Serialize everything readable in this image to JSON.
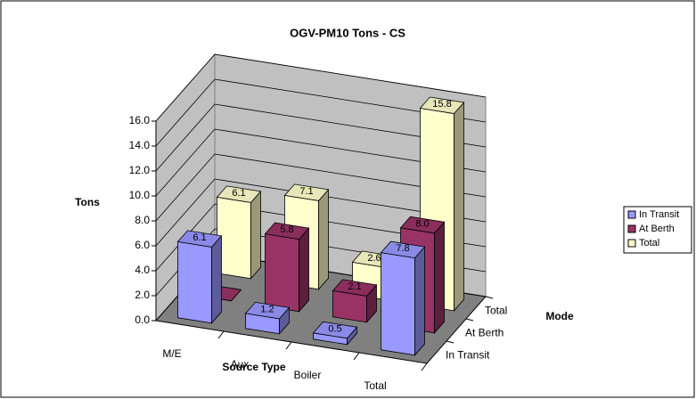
{
  "chart_data": {
    "type": "bar3d",
    "title": "OGV-PM10 Tons - CS",
    "x_label": "Source Type",
    "y_label": "Tons",
    "z_label": "Mode",
    "categories": [
      "M/E",
      "Aux",
      "Boiler",
      "Total"
    ],
    "series": [
      {
        "name": "In Transit",
        "color": "#9999ff",
        "values": [
          6.1,
          1.2,
          0.5,
          7.8
        ],
        "value_labels": [
          "6.1",
          "1.2",
          "0.5",
          "7.8"
        ]
      },
      {
        "name": "At Berth",
        "color": "#993366",
        "values": [
          0,
          5.8,
          2.1,
          8.0
        ],
        "value_labels": [
          "0",
          "5.8",
          "2.1",
          "8.0"
        ]
      },
      {
        "name": "Total",
        "color": "#ffffcc",
        "values": [
          6.1,
          7.1,
          2.6,
          15.8
        ],
        "value_labels": [
          "6.1",
          "7.1",
          "2.6",
          "15.8"
        ]
      }
    ],
    "ylim": [
      0,
      16
    ],
    "yticks": [
      {
        "value": 0,
        "label": "0.0"
      },
      {
        "value": 2,
        "label": "2.0"
      },
      {
        "value": 4,
        "label": "4.0"
      },
      {
        "value": 6,
        "label": "6.0"
      },
      {
        "value": 8,
        "label": "8.0"
      },
      {
        "value": 10,
        "label": "10.0"
      },
      {
        "value": 12,
        "label": "12.0"
      },
      {
        "value": 14,
        "label": "14.0"
      },
      {
        "value": 16,
        "label": "16.0"
      }
    ],
    "grid": true,
    "legend": "right"
  }
}
